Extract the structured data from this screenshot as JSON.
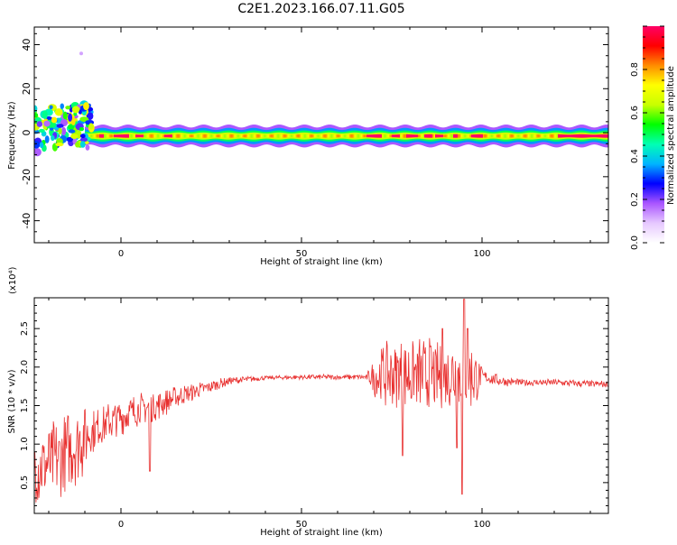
{
  "title": "C2E1.2023.166.07.11.G05",
  "chart_data": [
    {
      "type": "heatmap",
      "title": "C2E1.2023.166.07.11.G05",
      "xlabel": "Height of straight line (km)",
      "ylabel": "Frequency (Hz)",
      "xlim": [
        -24,
        135
      ],
      "ylim": [
        -50,
        48
      ],
      "x_ticks": [
        "0",
        "50",
        "100"
      ],
      "y_ticks": [
        "-40",
        "-20",
        "0",
        "20",
        "40"
      ],
      "colorbar": {
        "label": "Normalized spectral amplitude",
        "range": [
          0,
          1
        ],
        "ticks": [
          "0.0",
          "0.2",
          "0.4",
          "0.6",
          "0.8"
        ],
        "colormap": [
          "#ffffff",
          "#e6c8ff",
          "#aa55ff",
          "#0000ff",
          "#00b4ff",
          "#00ffb4",
          "#00ff00",
          "#c8ff00",
          "#ffff00",
          "#ff8c00",
          "#ff0000",
          "#ff0066"
        ]
      },
      "band": {
        "center_hz": -1.5,
        "start_km": -10,
        "end_km": 135,
        "peak_segments_km": [
          [
            -6,
            -5
          ],
          [
            -2,
            2
          ],
          [
            4,
            6
          ],
          [
            12,
            14
          ],
          [
            68,
            72
          ],
          [
            75,
            77
          ],
          [
            79,
            82
          ],
          [
            84,
            86
          ],
          [
            87,
            89
          ],
          [
            92,
            93
          ],
          [
            97,
            100
          ],
          [
            121,
            135
          ]
        ]
      }
    },
    {
      "type": "line",
      "xlabel": "Height of straight line (km)",
      "ylabel": "SNR (10 * v/v)",
      "y_multiplier": "(x10⁴)",
      "xlim": [
        -24,
        135
      ],
      "ylim": [
        0.1,
        2.9
      ],
      "x_ticks": [
        "0",
        "50",
        "100"
      ],
      "y_ticks": [
        "0.5",
        "1.0",
        "1.5",
        "2.0",
        "2.5"
      ],
      "color": "#e8302f",
      "trend_x": [
        -24,
        -20,
        -15,
        -10,
        -5,
        0,
        5,
        10,
        15,
        20,
        25,
        30,
        40,
        50,
        60,
        70,
        75,
        80,
        85,
        90,
        95,
        100,
        105,
        110,
        120,
        130,
        135
      ],
      "trend_y": [
        0.7,
        0.75,
        0.9,
        1.1,
        1.25,
        1.35,
        1.45,
        1.5,
        1.6,
        1.68,
        1.75,
        1.82,
        1.86,
        1.87,
        1.87,
        1.87,
        1.9,
        1.9,
        1.9,
        1.87,
        1.92,
        1.88,
        1.82,
        1.8,
        1.8,
        1.78,
        1.78
      ],
      "noise_amp_x": [
        -24,
        -10,
        -9,
        0,
        10,
        20,
        30,
        40,
        68,
        72,
        85,
        90,
        92,
        98,
        100,
        110,
        135
      ],
      "noise_amp_y": [
        0.55,
        0.55,
        0.3,
        0.25,
        0.2,
        0.12,
        0.06,
        0.03,
        0.04,
        0.45,
        0.55,
        0.4,
        0.6,
        0.5,
        0.1,
        0.05,
        0.05
      ],
      "dips": [
        [
          8,
          0.65
        ],
        [
          78,
          0.85
        ],
        [
          93,
          0.95
        ],
        [
          94.5,
          0.35
        ]
      ],
      "peaks": [
        [
          95,
          2.88
        ],
        [
          96,
          2.5
        ],
        [
          89,
          2.5
        ]
      ]
    }
  ]
}
